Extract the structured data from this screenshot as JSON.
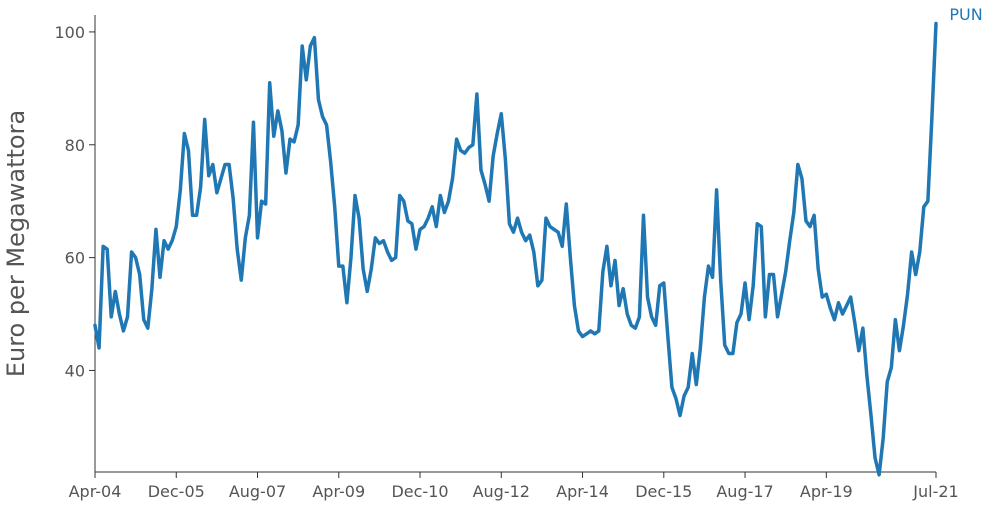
{
  "chart_data": {
    "type": "line",
    "title": "",
    "xlabel": "",
    "ylabel": "Euro per Megawattora",
    "x_ticks": [
      "Apr-04",
      "Dec-05",
      "Aug-07",
      "Apr-09",
      "Dec-10",
      "Aug-12",
      "Apr-14",
      "Dec-15",
      "Aug-17",
      "Apr-19",
      "Jul-21"
    ],
    "y_ticks": [
      40,
      60,
      80,
      100
    ],
    "xlim": [
      "2004-04",
      "2021-07"
    ],
    "ylim": [
      22,
      103
    ],
    "grid": false,
    "legend": "none",
    "series": [
      {
        "name": "PUN",
        "color": "#1f77b4",
        "start": "2004-04",
        "frequency": "monthly",
        "values": [
          48,
          44,
          62,
          61.5,
          49.5,
          54,
          50,
          47,
          49.5,
          61,
          60,
          57,
          49,
          47.5,
          54.5,
          65,
          56.5,
          63,
          61.5,
          63,
          65.5,
          72,
          82,
          79,
          67.5,
          67.5,
          72.5,
          84.5,
          74.5,
          76.5,
          71.5,
          74,
          76.5,
          76.5,
          70.5,
          61.5,
          56,
          63.5,
          67.5,
          84,
          63.5,
          70,
          69.5,
          91,
          81.5,
          86,
          82.5,
          75,
          81,
          80.5,
          83.5,
          97.5,
          91.5,
          97.5,
          99,
          88,
          85,
          83.5,
          77,
          69,
          58.5,
          58.5,
          52,
          60,
          71,
          67,
          58,
          54,
          58,
          63.5,
          62.5,
          63,
          61,
          59.5,
          60,
          71,
          70,
          66.5,
          66,
          61.5,
          65,
          65.5,
          67,
          69,
          65.5,
          71,
          68,
          70,
          74,
          81,
          79,
          78.5,
          79.5,
          80,
          89,
          75.5,
          73,
          70,
          78,
          82,
          85.5,
          77.5,
          66,
          64.5,
          67,
          64.5,
          63,
          64,
          61,
          55,
          56,
          67,
          65.5,
          65,
          64.5,
          62,
          69.5,
          60,
          51.5,
          47,
          46,
          46.5,
          47,
          46.5,
          47,
          57.5,
          62,
          55,
          59.5,
          51.5,
          54.5,
          50,
          48,
          47.5,
          49.5,
          67.5,
          53,
          49.5,
          48,
          55,
          55.5,
          46,
          37,
          35,
          32,
          35.5,
          37,
          43,
          37.5,
          44,
          53,
          58.5,
          56.5,
          72,
          56,
          44.5,
          43,
          43,
          48.5,
          50,
          55.5,
          49,
          55,
          66,
          65.5,
          49.5,
          57,
          57,
          49.5,
          53.5,
          57.5,
          63,
          68,
          76.5,
          74,
          66.5,
          65.5,
          67.5,
          58,
          53,
          53.5,
          51,
          49,
          52,
          50,
          51.5,
          53,
          48.5,
          43.5,
          47.5,
          39,
          32,
          24.5,
          21.5,
          28,
          38,
          40.5,
          49,
          43.5,
          48,
          53.5,
          61,
          57,
          61,
          69,
          70,
          85,
          101.5
        ]
      }
    ]
  }
}
